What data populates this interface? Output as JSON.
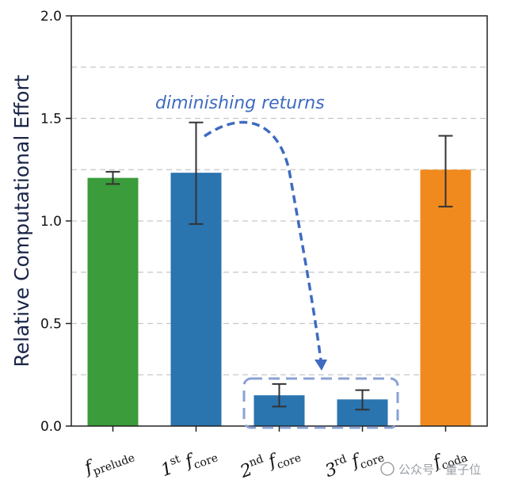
{
  "chart_data": {
    "type": "bar",
    "ylabel": "Relative Computational Effort",
    "ylim": [
      0,
      2.0
    ],
    "yticks": [
      "0.0",
      "0.5",
      "1.0",
      "1.5",
      "2.0"
    ],
    "grid": "horizontal dashed",
    "categories": [
      {
        "main": "f",
        "sub": "prelude"
      },
      {
        "pre": "1",
        "sup": "st",
        "main": "f",
        "sub": "core"
      },
      {
        "pre": "2",
        "sup": "nd",
        "main": "f",
        "sub": "core"
      },
      {
        "pre": "3",
        "sup": "rd",
        "main": "f",
        "sub": "core"
      },
      {
        "main": "f",
        "sub": "coda"
      }
    ],
    "values": [
      1.21,
      1.235,
      0.15,
      0.13,
      1.25
    ],
    "error_low": [
      1.18,
      0.985,
      0.095,
      0.08,
      1.07
    ],
    "error_high": [
      1.24,
      1.48,
      0.205,
      0.175,
      1.415
    ],
    "colors": [
      "#3a9c3a",
      "#2a74b0",
      "#2a74b0",
      "#2a74b0",
      "#f08a1e"
    ],
    "annotation": "diminishing returns",
    "annotation_color": "#3f6bc0"
  },
  "watermark": "公众号 · 量子位"
}
